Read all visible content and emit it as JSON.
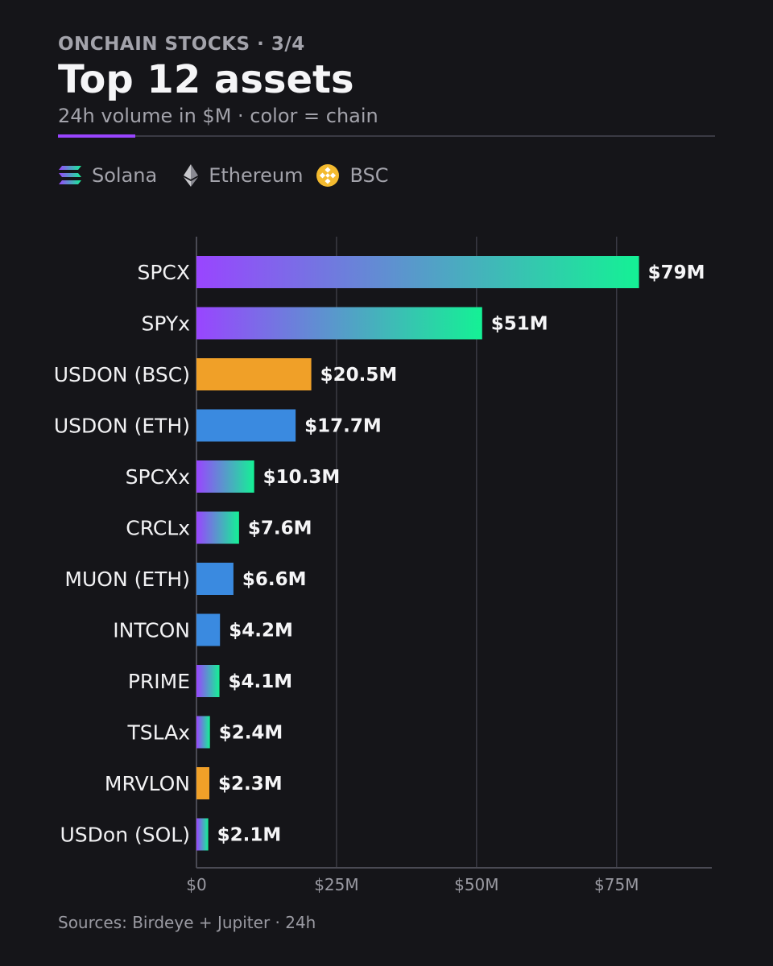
{
  "header": {
    "kicker": "ONCHAIN STOCKS · 3/4",
    "title": "Top 12 assets",
    "subtitle": "24h volume in $M · color = chain"
  },
  "legend": [
    {
      "name": "Solana",
      "icon": "solana-icon"
    },
    {
      "name": "Ethereum",
      "icon": "ethereum-icon"
    },
    {
      "name": "BSC",
      "icon": "bsc-icon"
    }
  ],
  "colors": {
    "solana_start": "#9945ff",
    "solana_end": "#14f195",
    "ethereum": "#3a8ae0",
    "bsc": "#f0a028",
    "background": "#151519",
    "grid": "#3a3a44"
  },
  "chart_data": {
    "type": "bar",
    "orientation": "horizontal",
    "categories": [
      "SPCX",
      "SPYx",
      "USDON (BSC)",
      "USDON (ETH)",
      "SPCXx",
      "CRCLx",
      "MUON (ETH)",
      "INTCON",
      "PRIME",
      "TSLAx",
      "MRVLON",
      "USDon (SOL)"
    ],
    "values": [
      79,
      51,
      20.5,
      17.7,
      10.3,
      7.6,
      6.6,
      4.2,
      4.1,
      2.4,
      2.3,
      2.1
    ],
    "value_labels": [
      "$79M",
      "$51M",
      "$20.5M",
      "$17.7M",
      "$10.3M",
      "$7.6M",
      "$6.6M",
      "$4.2M",
      "$4.1M",
      "$2.4M",
      "$2.3M",
      "$2.1M"
    ],
    "chains": [
      "Solana",
      "Solana",
      "BSC",
      "Ethereum",
      "Solana",
      "Solana",
      "Ethereum",
      "Ethereum",
      "Solana",
      "Solana",
      "BSC",
      "Solana"
    ],
    "x_ticks": [
      0,
      25,
      50,
      75
    ],
    "x_tick_labels": [
      "$0",
      "$25M",
      "$50M",
      "$75M"
    ],
    "xlim": [
      0,
      92
    ],
    "grid": true,
    "legend_position": "top-left"
  },
  "footer": {
    "source": "Sources: Birdeye + Jupiter · 24h"
  }
}
